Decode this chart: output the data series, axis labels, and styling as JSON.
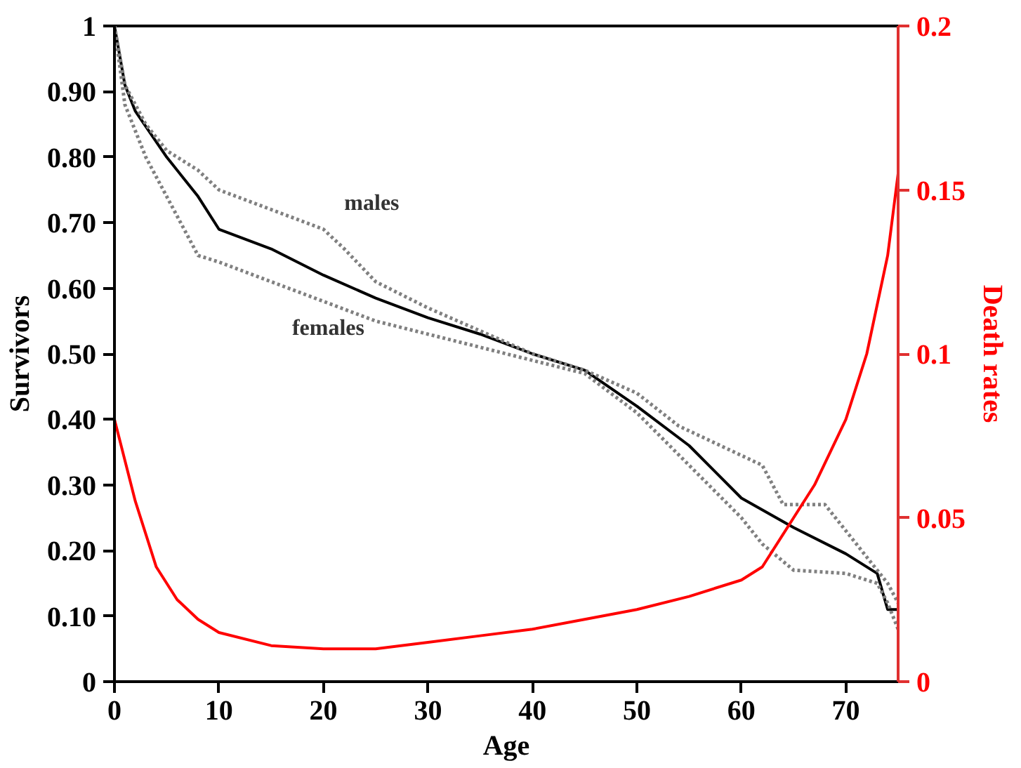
{
  "chart_data": {
    "type": "line",
    "xlabel": "Age",
    "ylabel": "Survivors",
    "y2label": "Death rates",
    "xlim": [
      0,
      75
    ],
    "xticks": [
      0,
      10,
      20,
      30,
      40,
      50,
      60,
      70
    ],
    "ylim": [
      0,
      1
    ],
    "yticks": [
      0,
      {
        "value": 0.1,
        "label": "0.10"
      },
      {
        "value": 0.2,
        "label": "0.20"
      },
      {
        "value": 0.3,
        "label": "0.30"
      },
      {
        "value": 0.4,
        "label": "0.40"
      },
      {
        "value": 0.5,
        "label": "0.50"
      },
      {
        "value": 0.6,
        "label": "0.60"
      },
      {
        "value": 0.7,
        "label": "0.70"
      },
      {
        "value": 0.8,
        "label": "0.80"
      },
      {
        "value": 0.9,
        "label": "0.90"
      },
      1
    ],
    "y2lim": [
      0,
      0.2
    ],
    "y2ticks": [
      0,
      0.05,
      0.1,
      0.15,
      0.2
    ],
    "grid": false,
    "series": [
      {
        "color": "#000000",
        "line_style": "solid",
        "x": [
          0,
          1,
          2,
          5,
          8,
          10,
          15,
          20,
          25,
          30,
          35,
          40,
          45,
          50,
          55,
          60,
          65,
          70,
          73,
          74,
          75
        ],
        "values": [
          1.0,
          0.91,
          0.87,
          0.8,
          0.74,
          0.69,
          0.66,
          0.62,
          0.585,
          0.555,
          0.53,
          0.5,
          0.475,
          0.42,
          0.36,
          0.28,
          0.235,
          0.195,
          0.165,
          0.11,
          0.11
        ]
      },
      {
        "name": "males",
        "color": "#808080",
        "line_style": "dotted",
        "x": [
          0,
          1,
          3,
          5,
          8,
          10,
          15,
          20,
          22,
          25,
          30,
          35,
          40,
          45,
          50,
          54,
          58,
          62,
          64,
          68,
          70,
          72,
          74,
          75
        ],
        "values": [
          1.0,
          0.91,
          0.85,
          0.81,
          0.78,
          0.75,
          0.72,
          0.69,
          0.66,
          0.61,
          0.57,
          0.535,
          0.5,
          0.475,
          0.44,
          0.39,
          0.36,
          0.33,
          0.27,
          0.27,
          0.23,
          0.19,
          0.15,
          0.12
        ]
      },
      {
        "name": "females",
        "color": "#808080",
        "line_style": "dotted",
        "x": [
          0,
          1,
          3,
          5,
          8,
          10,
          15,
          20,
          25,
          30,
          35,
          40,
          45,
          50,
          55,
          60,
          62,
          65,
          70,
          73,
          74,
          75
        ],
        "values": [
          1.0,
          0.88,
          0.8,
          0.74,
          0.65,
          0.64,
          0.61,
          0.58,
          0.55,
          0.53,
          0.51,
          0.49,
          0.47,
          0.41,
          0.33,
          0.25,
          0.21,
          0.17,
          0.165,
          0.15,
          0.12,
          0.08
        ]
      },
      {
        "color": "#ff0000",
        "line_style": "solid",
        "axis": "y2",
        "x": [
          0,
          2,
          4,
          6,
          8,
          10,
          15,
          20,
          25,
          30,
          35,
          40,
          45,
          50,
          55,
          60,
          62,
          65,
          67,
          70,
          72,
          74,
          75
        ],
        "values": [
          0.08,
          0.055,
          0.035,
          0.025,
          0.019,
          0.015,
          0.011,
          0.01,
          0.01,
          0.012,
          0.014,
          0.016,
          0.019,
          0.022,
          0.026,
          0.031,
          0.035,
          0.05,
          0.06,
          0.08,
          0.1,
          0.13,
          0.155
        ]
      }
    ]
  }
}
